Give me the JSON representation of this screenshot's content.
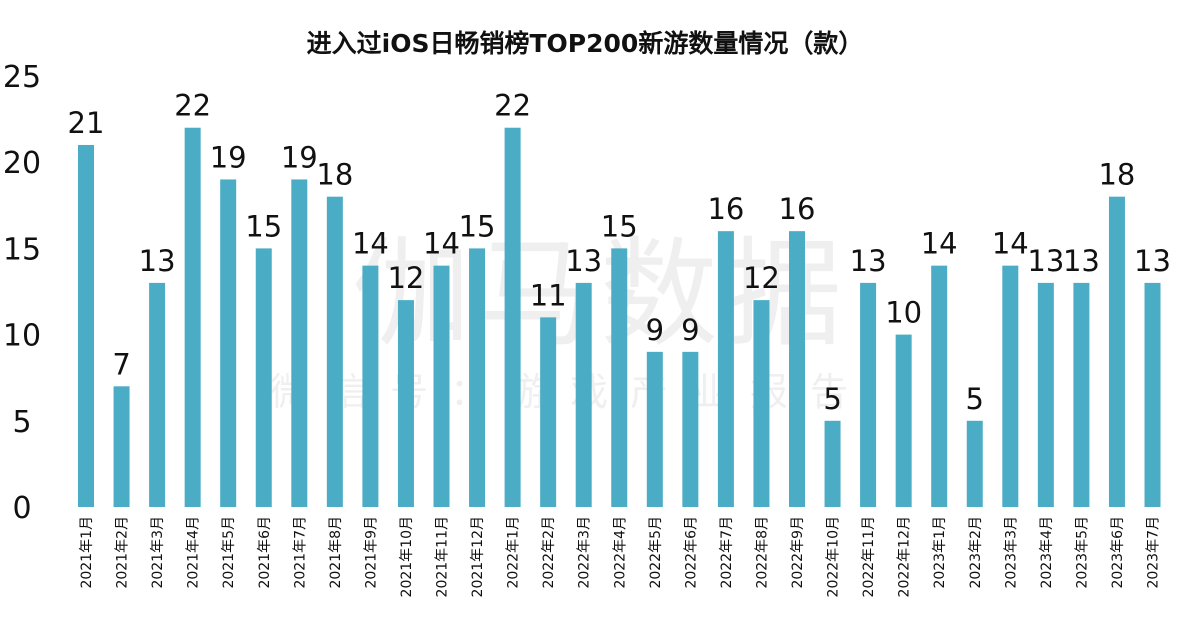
{
  "chart_data": {
    "type": "bar",
    "title": "进入过iOS日畅销榜TOP200新游数量情况（款）",
    "categories": [
      "2021年1月",
      "2021年2月",
      "2021年3月",
      "2021年4月",
      "2021年5月",
      "2021年6月",
      "2021年7月",
      "2021年8月",
      "2021年9月",
      "2021年10月",
      "2021年11月",
      "2021年12月",
      "2022年1月",
      "2022年2月",
      "2022年3月",
      "2022年4月",
      "2022年5月",
      "2022年6月",
      "2022年7月",
      "2022年8月",
      "2022年9月",
      "2022年10月",
      "2022年11月",
      "2022年12月",
      "2023年1月",
      "2023年2月",
      "2023年3月",
      "2023年4月",
      "2023年5月",
      "2023年6月",
      "2023年7月"
    ],
    "values": [
      21,
      7,
      13,
      22,
      19,
      15,
      19,
      18,
      14,
      12,
      14,
      15,
      22,
      11,
      13,
      15,
      9,
      9,
      16,
      12,
      16,
      5,
      13,
      10,
      14,
      5,
      14,
      13,
      13,
      18,
      13
    ],
    "ylim": [
      0,
      25
    ],
    "yticks": [
      0,
      5,
      10,
      15,
      20,
      25
    ],
    "xlabel": "",
    "ylabel": "",
    "grid": false,
    "bar_color": "#4BACC6",
    "watermark": {
      "main": "伽马数据",
      "sub": "微信号：游戏产业报告"
    }
  }
}
